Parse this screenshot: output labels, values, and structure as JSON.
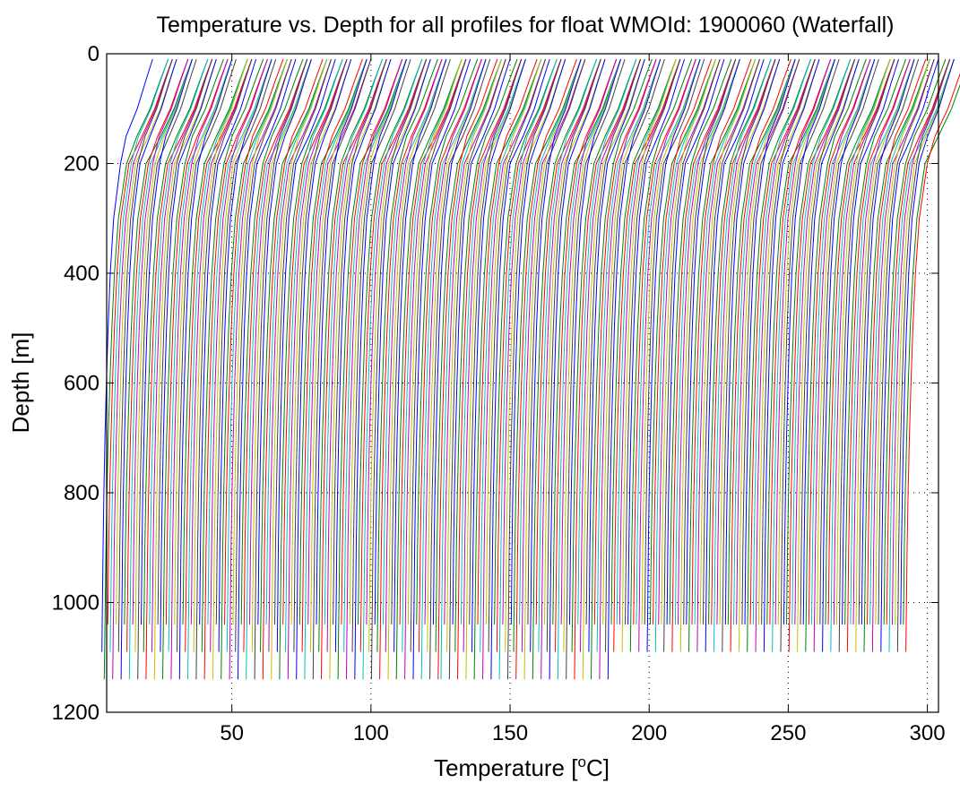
{
  "chart_data": {
    "type": "line",
    "title": "Temperature vs. Depth for all profiles for float WMOId: 1900060 (Waterfall)",
    "xlabel": "Temperature [",
    "xlabel_sup": "o",
    "xlabel_suffix": "C]",
    "ylabel": "Depth [m]",
    "xlim": [
      5,
      304
    ],
    "ylim": [
      0,
      1200
    ],
    "y_reversed": true,
    "x_ticks": [
      50,
      100,
      150,
      200,
      250,
      300
    ],
    "y_ticks": [
      0,
      200,
      400,
      600,
      800,
      1000,
      1200
    ],
    "grid": true,
    "legend": "none",
    "color_cycle": [
      "#0000ff",
      "#008000",
      "#ff0000",
      "#00bfbf",
      "#bf00bf",
      "#bfbf00",
      "#404040"
    ],
    "series_description": "waterfall of ~290 profiles; each successive profile offset by +1 on x",
    "profile_count": 290,
    "profile_shape_depths": [
      10,
      50,
      100,
      150,
      200,
      300,
      400,
      500,
      600,
      700,
      800,
      900,
      1000,
      1040,
      1090,
      1140
    ],
    "profile_shape_offsets": [
      19.5,
      17.0,
      14.0,
      10.0,
      6.5,
      4.0,
      2.8,
      2.0,
      1.4,
      0.9,
      0.5,
      0.2,
      0.0,
      -0.1,
      -0.2,
      -0.3
    ],
    "segments": [
      {
        "start": 1,
        "end": 122,
        "bottom_depth_group": "a"
      },
      {
        "start": 122,
        "end": 183,
        "bottom_depth_group": "b"
      },
      {
        "start": 183,
        "end": 290,
        "bottom_depth_group": "c"
      }
    ]
  }
}
